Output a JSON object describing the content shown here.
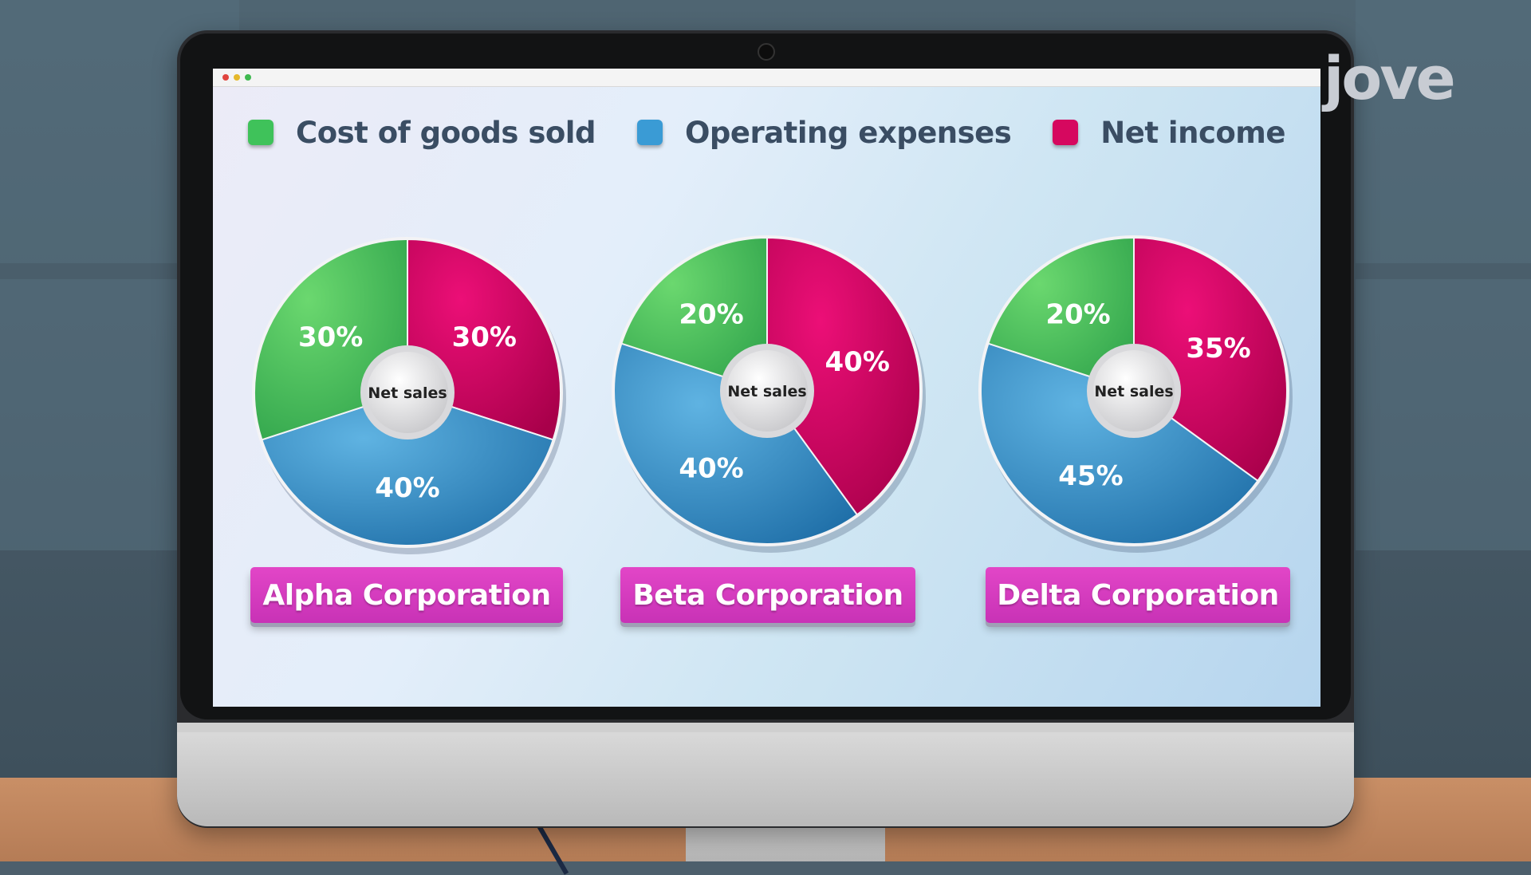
{
  "logo_text": "jove",
  "legend": [
    {
      "label": "Cost of goods sold",
      "color": "#3fc25a"
    },
    {
      "label": "Operating expenses",
      "color": "#3a9bd5"
    },
    {
      "label": "Net income",
      "color": "#d6085f"
    }
  ],
  "center_label": "Net sales",
  "chart_data": [
    {
      "type": "pie",
      "title": "Alpha Corporation",
      "slices": [
        {
          "name": "Net income",
          "value": 30,
          "label": "30%"
        },
        {
          "name": "Operating expenses",
          "value": 40,
          "label": "40%"
        },
        {
          "name": "Cost of goods sold",
          "value": 30,
          "label": "30%"
        }
      ]
    },
    {
      "type": "pie",
      "title": "Beta Corporation",
      "slices": [
        {
          "name": "Net income",
          "value": 40,
          "label": "40%"
        },
        {
          "name": "Operating expenses",
          "value": 40,
          "label": "40%"
        },
        {
          "name": "Cost of goods sold",
          "value": 20,
          "label": "20%"
        }
      ]
    },
    {
      "type": "pie",
      "title": "Delta Corporation",
      "slices": [
        {
          "name": "Net income",
          "value": 35,
          "label": "35%"
        },
        {
          "name": "Operating expenses",
          "value": 45,
          "label": "45%"
        },
        {
          "name": "Cost of goods sold",
          "value": 20,
          "label": "20%"
        }
      ]
    }
  ]
}
